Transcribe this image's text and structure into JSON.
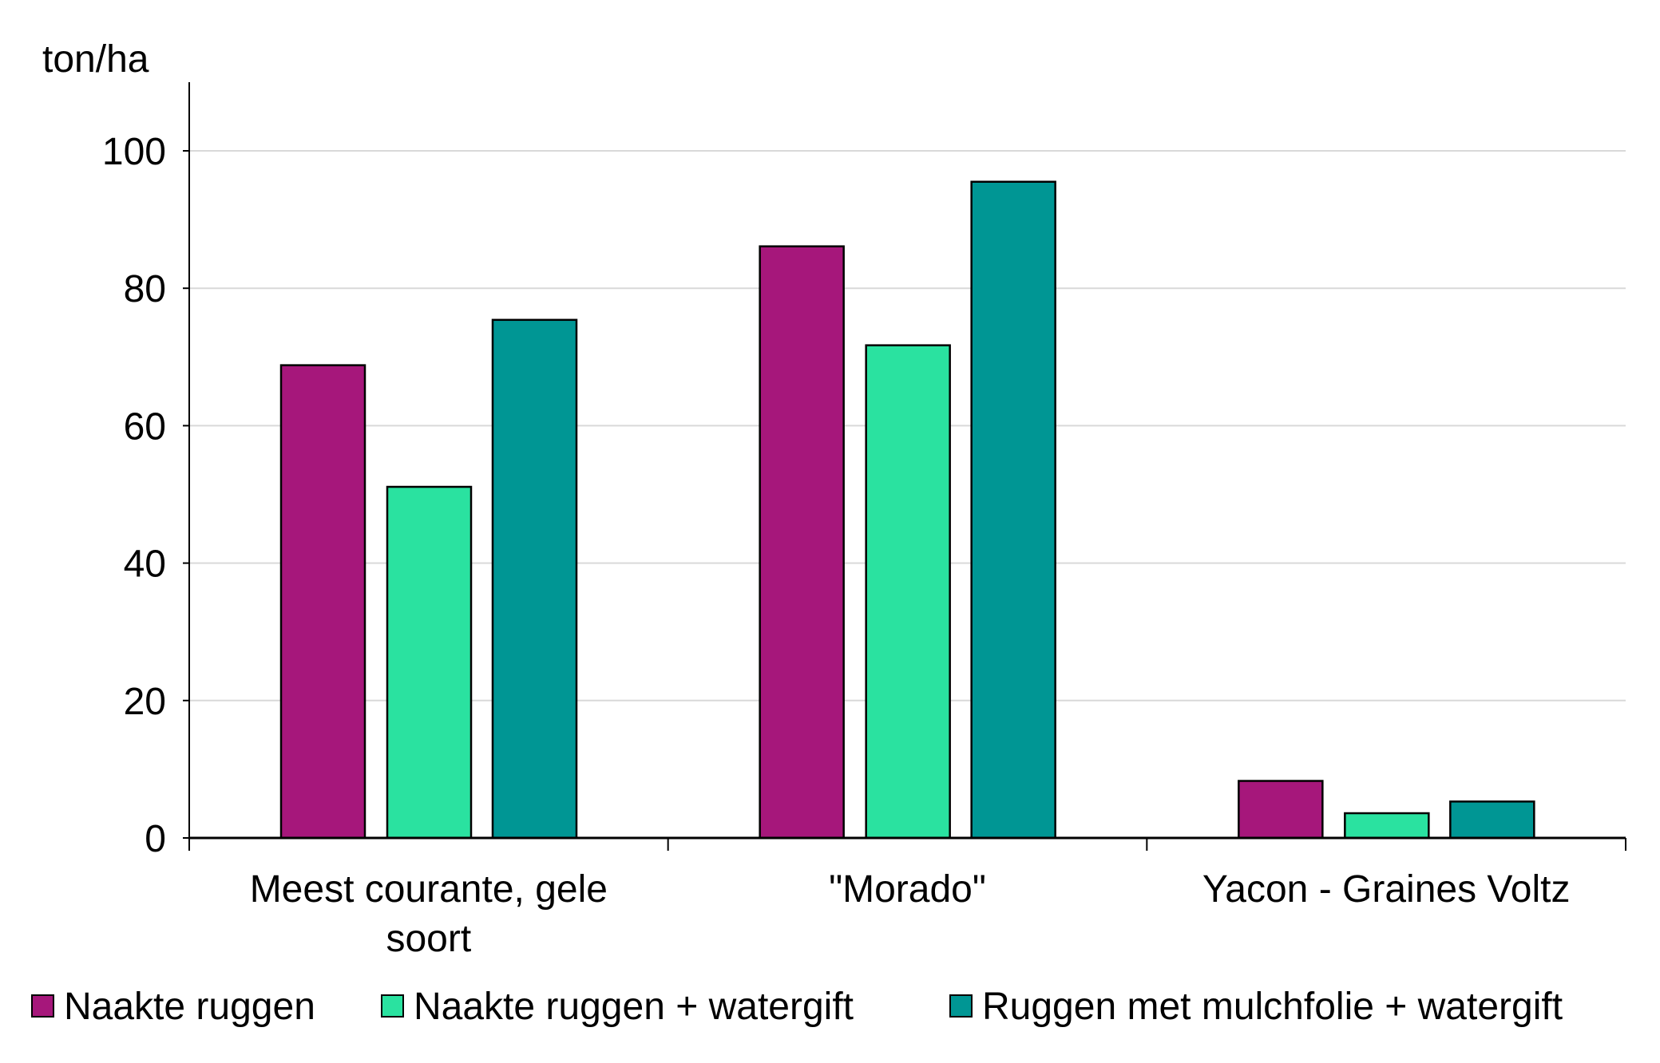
{
  "chart_data": {
    "type": "bar",
    "title": "",
    "ylabel": "ton/ha",
    "xlabel": "",
    "ylim": [
      0,
      110
    ],
    "yticks": [
      0,
      20,
      40,
      60,
      80,
      100
    ],
    "grid": true,
    "legend_position": "bottom",
    "categories": [
      [
        "Meest courante, gele",
        "soort"
      ],
      [
        "\"Morado\""
      ],
      [
        "Yacon - Graines Voltz"
      ]
    ],
    "series": [
      {
        "name": "Naakte ruggen",
        "color": "#A6177B",
        "values": [
          68.8,
          86.1,
          8.3
        ]
      },
      {
        "name": "Naakte ruggen + watergift",
        "color": "#2AE2A0",
        "values": [
          51.1,
          71.7,
          3.6
        ]
      },
      {
        "name": "Ruggen met mulchfolie + watergift",
        "color": "#009694",
        "values": [
          75.4,
          95.5,
          5.3
        ]
      }
    ]
  }
}
